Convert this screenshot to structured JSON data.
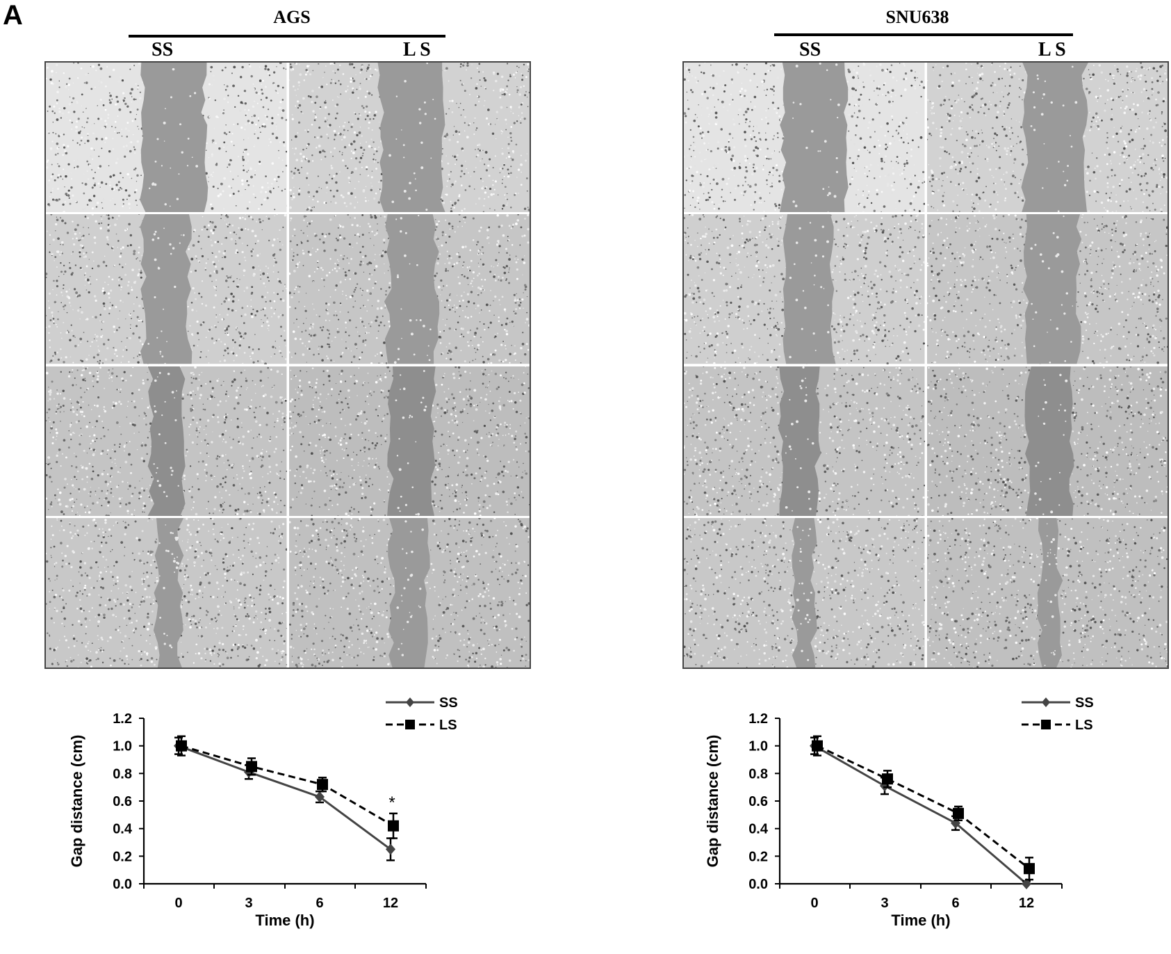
{
  "panel_label": "A",
  "left": {
    "cell_line": "AGS",
    "conditions": [
      "SS",
      "L S"
    ],
    "gap_positions": [
      [
        {
          "center": 0.53,
          "width": 0.26
        },
        {
          "center": 0.51,
          "width": 0.26
        }
      ],
      [
        {
          "center": 0.5,
          "width": 0.19
        },
        {
          "center": 0.51,
          "width": 0.2
        }
      ],
      [
        {
          "center": 0.5,
          "width": 0.13
        },
        {
          "center": 0.51,
          "width": 0.18
        }
      ],
      [
        {
          "center": 0.51,
          "width": 0.1
        },
        {
          "center": 0.5,
          "width": 0.15
        }
      ]
    ]
  },
  "right": {
    "cell_line": "SNU638",
    "conditions": [
      "SS",
      "L S"
    ],
    "gap_positions": [
      [
        {
          "center": 0.54,
          "width": 0.26
        },
        {
          "center": 0.53,
          "width": 0.25
        }
      ],
      [
        {
          "center": 0.52,
          "width": 0.2
        },
        {
          "center": 0.52,
          "width": 0.22
        }
      ],
      [
        {
          "center": 0.48,
          "width": 0.15
        },
        {
          "center": 0.51,
          "width": 0.18
        }
      ],
      [
        {
          "center": 0.5,
          "width": 0.08
        },
        {
          "center": 0.51,
          "width": 0.08
        }
      ]
    ]
  },
  "chart_data": [
    {
      "type": "line",
      "x": [
        "0",
        "3",
        "6",
        "12"
      ],
      "xlabel": "Time (h)",
      "ylabel": "Gap distance (cm)",
      "ylim": [
        0.0,
        1.2
      ],
      "yticks": [
        "0.0",
        "0.2",
        "0.4",
        "0.6",
        "0.8",
        "1.0",
        "1.2"
      ],
      "legend_position": "top-right",
      "series": [
        {
          "name": "SS",
          "values": [
            1.0,
            0.81,
            0.63,
            0.25
          ],
          "errors": [
            0.06,
            0.05,
            0.04,
            0.08
          ],
          "line": "solid",
          "marker": "diamond",
          "color": "#444444"
        },
        {
          "name": "LS",
          "values": [
            1.0,
            0.85,
            0.72,
            0.42
          ],
          "errors": [
            0.07,
            0.06,
            0.05,
            0.09
          ],
          "line": "dashed",
          "marker": "square",
          "color": "#000000"
        }
      ],
      "annotations": [
        {
          "x": "12",
          "text": "*"
        }
      ]
    },
    {
      "type": "line",
      "x": [
        "0",
        "3",
        "6",
        "12"
      ],
      "xlabel": "Time (h)",
      "ylabel": "Gap distance (cm)",
      "ylim": [
        0.0,
        1.2
      ],
      "yticks": [
        "0.0",
        "0.2",
        "0.4",
        "0.6",
        "0.8",
        "1.0",
        "1.2"
      ],
      "legend_position": "top-right",
      "series": [
        {
          "name": "SS",
          "values": [
            1.0,
            0.71,
            0.44,
            0.0
          ],
          "errors": [
            0.06,
            0.06,
            0.05,
            0.02
          ],
          "line": "solid",
          "marker": "diamond",
          "color": "#444444"
        },
        {
          "name": "LS",
          "values": [
            1.0,
            0.76,
            0.51,
            0.11
          ],
          "errors": [
            0.07,
            0.06,
            0.05,
            0.08
          ],
          "line": "dashed",
          "marker": "square",
          "color": "#000000"
        }
      ]
    }
  ]
}
